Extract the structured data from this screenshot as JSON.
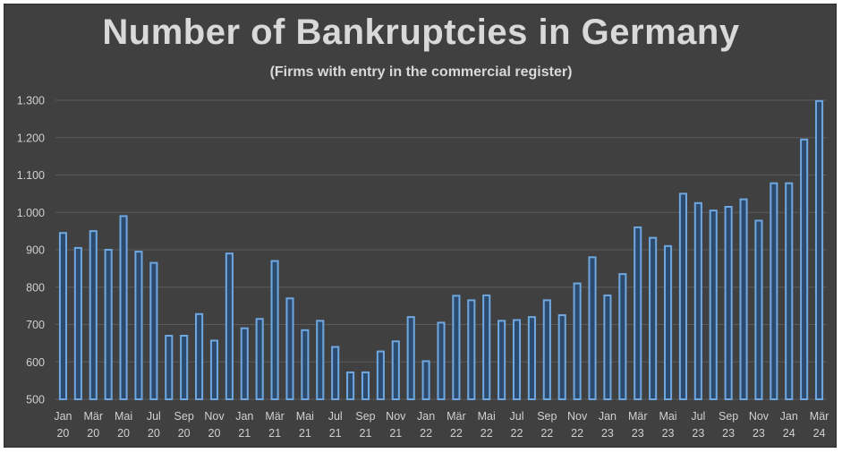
{
  "chart_data": {
    "type": "bar",
    "title": "Number of Bankruptcies in Germany",
    "subtitle": "(Firms with entry in the commercial register)",
    "xlabel": "",
    "ylabel": "",
    "ylim": [
      500,
      1300
    ],
    "yticks": [
      500,
      600,
      700,
      800,
      900,
      1000,
      1100,
      1200,
      1300
    ],
    "ytick_labels": [
      "500",
      "600",
      "700",
      "800",
      "900",
      "1.000",
      "1.100",
      "1.200",
      "1.300"
    ],
    "grid": true,
    "categories": [
      "Jan 20",
      "Feb 20",
      "Mär 20",
      "Apr 20",
      "Mai 20",
      "Jun 20",
      "Jul 20",
      "Aug 20",
      "Sep 20",
      "Okt 20",
      "Nov 20",
      "Dez 20",
      "Jan 21",
      "Feb 21",
      "Mär 21",
      "Apr 21",
      "Mai 21",
      "Jun 21",
      "Jul 21",
      "Aug 21",
      "Sep 21",
      "Okt 21",
      "Nov 21",
      "Dez 21",
      "Jan 22",
      "Feb 22",
      "Mär 22",
      "Apr 22",
      "Mai 22",
      "Jun 22",
      "Jul 22",
      "Aug 22",
      "Sep 22",
      "Okt 22",
      "Nov 22",
      "Dez 22",
      "Jan 23",
      "Feb 23",
      "Mär 23",
      "Apr 23",
      "Mai 23",
      "Jun 23",
      "Jul 23",
      "Aug 23",
      "Sep 23",
      "Okt 23",
      "Nov 23",
      "Dez 23",
      "Jan 24",
      "Feb 24",
      "Mär 24"
    ],
    "values": [
      945,
      905,
      950,
      900,
      990,
      895,
      865,
      670,
      670,
      728,
      657,
      890,
      690,
      715,
      870,
      770,
      685,
      710,
      640,
      572,
      572,
      628,
      655,
      720,
      602,
      705,
      777,
      765,
      778,
      710,
      712,
      720,
      765,
      725,
      810,
      880,
      778,
      835,
      960,
      932,
      910,
      1050,
      1025,
      1005,
      1015,
      1035,
      978,
      1078,
      1078,
      1195,
      1298
    ],
    "x_tick_labels": [
      {
        "month": "Jan",
        "year": "20"
      },
      {
        "month": "Mär",
        "year": "20"
      },
      {
        "month": "Mai",
        "year": "20"
      },
      {
        "month": "Jul",
        "year": "20"
      },
      {
        "month": "Sep",
        "year": "20"
      },
      {
        "month": "Nov",
        "year": "20"
      },
      {
        "month": "Jan",
        "year": "21"
      },
      {
        "month": "Mär",
        "year": "21"
      },
      {
        "month": "Mai",
        "year": "21"
      },
      {
        "month": "Jul",
        "year": "21"
      },
      {
        "month": "Sep",
        "year": "21"
      },
      {
        "month": "Nov",
        "year": "21"
      },
      {
        "month": "Jan",
        "year": "22"
      },
      {
        "month": "Mär",
        "year": "22"
      },
      {
        "month": "Mai",
        "year": "22"
      },
      {
        "month": "Jul",
        "year": "22"
      },
      {
        "month": "Sep",
        "year": "22"
      },
      {
        "month": "Nov",
        "year": "22"
      },
      {
        "month": "Jan",
        "year": "23"
      },
      {
        "month": "Mär",
        "year": "23"
      },
      {
        "month": "Mai",
        "year": "23"
      },
      {
        "month": "Jul",
        "year": "23"
      },
      {
        "month": "Sep",
        "year": "23"
      },
      {
        "month": "Nov",
        "year": "23"
      },
      {
        "month": "Jan",
        "year": "24"
      },
      {
        "month": "Mär",
        "year": "24"
      }
    ],
    "colors": {
      "background": "#404040",
      "bar_fill": "#2c4a6e",
      "bar_stroke": "#6fa8e0",
      "grid": "#5a5a5a",
      "text": "#d9d9d9"
    }
  }
}
